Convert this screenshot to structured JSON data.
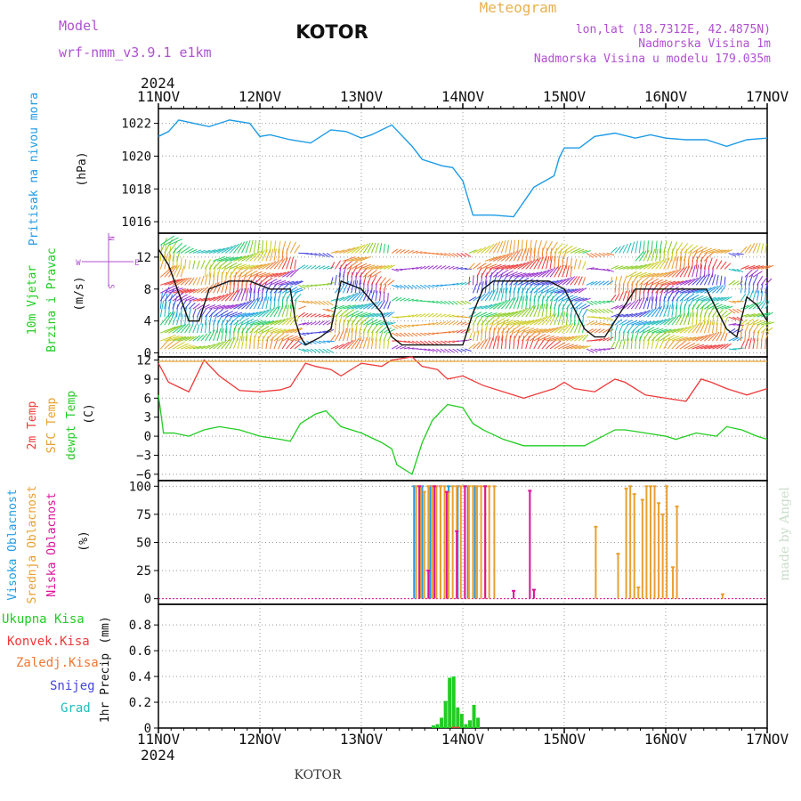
{
  "header": {
    "model_label": "Model",
    "model_name": "wrf-nmm_v3.9.1 e1km",
    "station": "KOTOR",
    "chart_kind": "Meteogram",
    "lonlat": "lon,lat (18.7312E, 42.4875N)",
    "altitude": "Nadmorska Visina 1m",
    "model_altitude": "Nadmorska Visina u modelu 179.035m",
    "year": "2024",
    "footer_station": "KOTOR",
    "watermark": "made by Angel"
  },
  "colors": {
    "pressure": "#1e9be6",
    "temp2m": "#ee3a3a",
    "sfc": "#e8a030",
    "dewpt": "#22cc22",
    "high_cloud": "#1e9be6",
    "mid_cloud": "#e8a030",
    "low_cloud": "#dd1199",
    "total_precip": "#22cc22",
    "convective": "#ee3a3a",
    "freezing": "#ee7733",
    "snow": "#4444dd",
    "hail": "#22bbbb",
    "title_purple": "#b050d0",
    "title_orange": "#e8b050"
  },
  "chart_data": [
    {
      "type": "line",
      "id": "pressure",
      "ylabel": "Pritisak na nivou mora",
      "unit": "(hPa)",
      "ylim": [
        1015.3,
        1022.9
      ],
      "yticks": [
        1016,
        1018,
        1020,
        1022
      ],
      "x_days": [
        0,
        0.1,
        0.2,
        0.35,
        0.5,
        0.7,
        0.9,
        1.0,
        1.1,
        1.3,
        1.5,
        1.7,
        1.85,
        2.0,
        2.1,
        2.3,
        2.5,
        2.6,
        2.8,
        2.9,
        3.0,
        3.1,
        3.3,
        3.5,
        3.7,
        3.9,
        3.95,
        4.0,
        4.15,
        4.3,
        4.5,
        4.7,
        4.85,
        5.0,
        5.2,
        5.4,
        5.6,
        5.8,
        6.0
      ],
      "values": [
        1021.2,
        1021.5,
        1022.2,
        1022.0,
        1021.8,
        1022.2,
        1022.0,
        1021.2,
        1021.3,
        1021.0,
        1020.8,
        1021.6,
        1021.5,
        1021.1,
        1021.3,
        1021.9,
        1020.6,
        1019.8,
        1019.4,
        1019.3,
        1018.5,
        1016.4,
        1016.4,
        1016.3,
        1018.1,
        1018.8,
        1019.9,
        1020.5,
        1020.5,
        1021.2,
        1021.4,
        1021.1,
        1021.3,
        1021.1,
        1021.0,
        1021.0,
        1020.6,
        1021.0,
        1021.1
      ],
      "grid": true
    },
    {
      "type": "vector",
      "id": "wind",
      "ylabel": [
        "10m Vjetar",
        "Brzina i Pravac"
      ],
      "unit": "(m/s)",
      "compass": [
        "N",
        "W",
        "E",
        "S"
      ],
      "ylim": [
        -0.5,
        15
      ],
      "yticks": [
        0,
        4,
        8,
        12
      ],
      "x_days": [
        0,
        0.1,
        0.3,
        0.4,
        0.5,
        0.7,
        0.9,
        1.1,
        1.3,
        1.35,
        1.4,
        1.45,
        1.6,
        1.7,
        1.8,
        2.0,
        2.2,
        2.3,
        2.4,
        2.7,
        2.9,
        3.0,
        3.1,
        3.2,
        3.3,
        3.4,
        3.6,
        3.85,
        4.0,
        4.2,
        4.3,
        4.4,
        4.7,
        4.9,
        5.0,
        5.1,
        5.2,
        5.4,
        5.6,
        5.7,
        5.8,
        5.9,
        6.0
      ],
      "speed": [
        13,
        11,
        4,
        4,
        8,
        9,
        9,
        8,
        8,
        4,
        2,
        1,
        2,
        3,
        9,
        8,
        5,
        2,
        1,
        1,
        1,
        1,
        5,
        8,
        9,
        9,
        9,
        9,
        8,
        3,
        2,
        2,
        8,
        8,
        8,
        8,
        8,
        8,
        3,
        2,
        7,
        6,
        4
      ],
      "grid": true
    },
    {
      "type": "line",
      "id": "temperature",
      "ylabel": [
        "2m Temp",
        "SFC Temp",
        "dewpt Temp"
      ],
      "unit": "(C)",
      "ylim": [
        -7,
        12.5
      ],
      "yticks": [
        -6,
        -3,
        0,
        3,
        6,
        9,
        12
      ],
      "series": [
        {
          "name": "2m Temp",
          "x_days": [
            0,
            0.1,
            0.3,
            0.45,
            0.6,
            0.8,
            1.0,
            1.2,
            1.3,
            1.45,
            1.55,
            1.7,
            1.8,
            2.0,
            2.2,
            2.3,
            2.5,
            2.6,
            2.75,
            2.85,
            3.0,
            3.2,
            3.4,
            3.6,
            3.9,
            4.0,
            4.1,
            4.3,
            4.5,
            4.6,
            4.8,
            5.0,
            5.2,
            5.35,
            5.45,
            5.6,
            5.8,
            6.0
          ],
          "values": [
            11.5,
            8.5,
            7.0,
            12.0,
            9.5,
            7.2,
            7.0,
            7.3,
            7.8,
            11.5,
            11.0,
            10.5,
            9.5,
            11.5,
            11.0,
            12.0,
            12.5,
            11.0,
            10.5,
            9.0,
            9.5,
            8.0,
            7.0,
            6.0,
            7.5,
            8.5,
            7.5,
            7.0,
            9.0,
            8.5,
            6.5,
            6.0,
            5.5,
            9.0,
            8.5,
            7.5,
            6.5,
            7.5
          ]
        },
        {
          "name": "SFC Temp",
          "x_days": [
            0,
            6.0
          ],
          "values": [
            11.8,
            11.8
          ]
        },
        {
          "name": "dewpt Temp",
          "x_days": [
            0,
            0.05,
            0.15,
            0.3,
            0.45,
            0.6,
            0.8,
            1.0,
            1.2,
            1.3,
            1.4,
            1.55,
            1.65,
            1.8,
            2.0,
            2.2,
            2.3,
            2.35,
            2.5,
            2.6,
            2.7,
            2.85,
            3.0,
            3.1,
            3.2,
            3.4,
            3.6,
            3.8,
            4.0,
            4.2,
            4.5,
            4.6,
            4.8,
            5.0,
            5.1,
            5.3,
            5.5,
            5.6,
            5.75,
            5.9,
            6.0
          ],
          "values": [
            6.5,
            0.5,
            0.5,
            0.0,
            1.0,
            1.5,
            1.0,
            0.0,
            -0.5,
            -0.8,
            2.0,
            3.5,
            4.0,
            1.5,
            0.5,
            -1.0,
            -2.0,
            -4.5,
            -6.0,
            -1.0,
            2.5,
            5.0,
            4.5,
            2.0,
            1.0,
            -0.5,
            -1.5,
            -1.5,
            -1.5,
            -1.5,
            1.0,
            1.0,
            0.5,
            0.0,
            -0.5,
            0.5,
            0.0,
            1.5,
            1.0,
            0.0,
            -0.5
          ]
        }
      ],
      "grid": true
    },
    {
      "type": "bar",
      "id": "cloud",
      "ylabel": [
        "Visoka Oblacnost",
        "Srednja Oblacnost",
        "Niska Oblacnost"
      ],
      "unit": "(%)",
      "ylim": [
        -5,
        105
      ],
      "yticks": [
        0,
        25,
        50,
        75,
        100
      ],
      "series": [
        {
          "name": "Visoka Oblacnost",
          "x_days": [
            2.52,
            2.6,
            2.68,
            2.78,
            2.86,
            2.95,
            3.05,
            3.12
          ],
          "values": [
            100,
            100,
            100,
            100,
            100,
            100,
            100,
            100
          ]
        },
        {
          "name": "Srednja Oblacnost",
          "x_days": [
            2.53,
            2.57,
            2.61,
            2.65,
            2.69,
            2.73,
            2.77,
            2.81,
            2.85,
            2.89,
            2.93,
            2.97,
            3.01,
            3.05,
            3.09,
            3.13,
            3.17,
            3.21,
            3.25,
            3.3,
            4.3,
            4.52,
            4.6,
            4.64,
            4.68,
            4.72,
            4.76,
            4.8,
            4.84,
            4.88,
            4.92,
            4.96,
            5.0,
            5.06,
            5.1,
            5.55
          ],
          "values": [
            100,
            100,
            95,
            100,
            100,
            100,
            100,
            100,
            95,
            100,
            100,
            100,
            100,
            100,
            100,
            100,
            100,
            100,
            100,
            100,
            64,
            40,
            98,
            100,
            93,
            10,
            88,
            100,
            100,
            100,
            85,
            75,
            100,
            28,
            82,
            4
          ]
        },
        {
          "name": "Niska Oblacnost",
          "x_days": [
            2.55,
            2.64,
            2.7,
            2.82,
            2.92,
            3.0,
            3.2,
            3.48,
            3.64,
            3.68
          ],
          "values": [
            100,
            25,
            100,
            95,
            60,
            100,
            100,
            7,
            96,
            8
          ]
        }
      ],
      "grid": true
    },
    {
      "type": "bar",
      "id": "precip",
      "ylabel": "1hr Precip",
      "unit": "(mm)",
      "legend": [
        "Ukupna Kisa",
        "Konvek.Kisa",
        "Zaledj.Kisa",
        "Snijeg",
        "Grad"
      ],
      "ylim": [
        0,
        0.96
      ],
      "yticks": [
        0,
        0.2,
        0.4,
        0.6,
        0.8
      ],
      "series": [
        {
          "name": "Ukupna Kisa",
          "x_days": [
            2.71,
            2.75,
            2.79,
            2.83,
            2.87,
            2.91,
            2.95,
            2.99,
            3.03,
            3.07,
            3.11,
            3.15
          ],
          "values": [
            0.02,
            0.03,
            0.08,
            0.21,
            0.39,
            0.4,
            0.16,
            0.11,
            0.03,
            0.06,
            0.18,
            0.08
          ]
        },
        {
          "name": "Konvek.Kisa",
          "x_days": [
            2.91,
            2.95
          ],
          "values": [
            0.01,
            0.01
          ]
        }
      ],
      "grid": true
    }
  ],
  "x_axis": {
    "days": [
      0,
      1,
      2,
      3,
      4,
      5,
      6
    ],
    "labels": [
      "11NOV",
      "12NOV",
      "13NOV",
      "14NOV",
      "15NOV",
      "16NOV",
      "17NOV"
    ]
  }
}
